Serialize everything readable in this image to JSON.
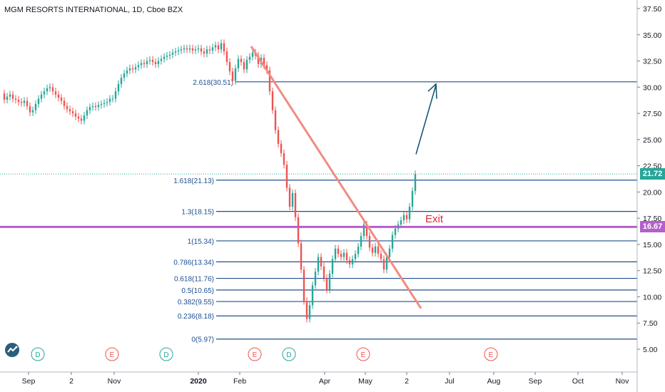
{
  "header": {
    "title": "MGM RESORTS INTERNATIONAL, 1D, Cboe BZX"
  },
  "chart_data": {
    "type": "candlestick",
    "title": "MGM RESORTS INTERNATIONAL, 1D, Cboe BZX",
    "ylim": [
      3.5,
      38.5
    ],
    "y_ticks": [
      "37.50",
      "35.00",
      "32.50",
      "30.00",
      "27.50",
      "25.00",
      "22.50",
      "20.00",
      "17.50",
      "15.00",
      "12.50",
      "10.00",
      "7.50",
      "5.00"
    ],
    "x_ticks": [
      "Sep",
      "2",
      "Nov",
      "2020",
      "Feb",
      "Apr",
      "May",
      "2",
      "Jul",
      "Aug",
      "Sep",
      "Oct",
      "Nov"
    ],
    "last_price": "21.72",
    "exit_price": "16.67",
    "exit_label": "Exit",
    "fib_levels": [
      {
        "label": "2.618(30.51)",
        "value": 30.51
      },
      {
        "label": "1.618(21.13)",
        "value": 21.13
      },
      {
        "label": "1.3(18.15)",
        "value": 18.15
      },
      {
        "label": "1(15.34)",
        "value": 15.34
      },
      {
        "label": "0.786(13.34)",
        "value": 13.34
      },
      {
        "label": "0.618(11.76)",
        "value": 11.76
      },
      {
        "label": "0.5(10.65)",
        "value": 10.65
      },
      {
        "label": "0.382(9.55)",
        "value": 9.55
      },
      {
        "label": "0.236(8.18)",
        "value": 8.18
      },
      {
        "label": "0(5.97)",
        "value": 5.97
      }
    ],
    "price_path": [
      [
        0,
        29.4
      ],
      [
        4,
        28.8
      ],
      [
        8,
        29.1
      ],
      [
        12,
        29.3
      ],
      [
        16,
        28.9
      ],
      [
        20,
        28.8
      ],
      [
        24,
        28.6
      ],
      [
        28,
        28.5
      ],
      [
        32,
        28.7
      ],
      [
        36,
        28.2
      ],
      [
        40,
        27.6
      ],
      [
        44,
        27.8
      ],
      [
        48,
        28.4
      ],
      [
        52,
        28.9
      ],
      [
        56,
        29.3
      ],
      [
        60,
        29.6
      ],
      [
        64,
        29.9
      ],
      [
        68,
        30.0
      ],
      [
        72,
        29.6
      ],
      [
        76,
        29.3
      ],
      [
        80,
        29.0
      ],
      [
        84,
        28.7
      ],
      [
        88,
        28.2
      ],
      [
        92,
        27.9
      ],
      [
        96,
        27.7
      ],
      [
        100,
        27.5
      ],
      [
        104,
        27.2
      ],
      [
        108,
        27.0
      ],
      [
        112,
        26.8
      ],
      [
        116,
        27.3
      ],
      [
        120,
        27.8
      ],
      [
        124,
        28.1
      ],
      [
        128,
        28.2
      ],
      [
        132,
        28.1
      ],
      [
        136,
        28.3
      ],
      [
        140,
        28.4
      ],
      [
        144,
        28.5
      ],
      [
        148,
        28.6
      ],
      [
        152,
        28.9
      ],
      [
        156,
        28.9
      ],
      [
        160,
        29.6
      ],
      [
        164,
        30.3
      ],
      [
        168,
        30.9
      ],
      [
        172,
        31.3
      ],
      [
        176,
        31.6
      ],
      [
        180,
        31.8
      ],
      [
        184,
        31.7
      ],
      [
        188,
        31.9
      ],
      [
        192,
        32.1
      ],
      [
        196,
        32.3
      ],
      [
        200,
        32.2
      ],
      [
        204,
        32.5
      ],
      [
        208,
        32.6
      ],
      [
        212,
        32.4
      ],
      [
        216,
        32.2
      ],
      [
        220,
        32.5
      ],
      [
        224,
        32.7
      ],
      [
        228,
        32.9
      ],
      [
        232,
        33.0
      ],
      [
        236,
        33.1
      ],
      [
        240,
        33.3
      ],
      [
        244,
        33.4
      ],
      [
        248,
        33.5
      ],
      [
        252,
        33.6
      ],
      [
        256,
        33.7
      ],
      [
        260,
        33.6
      ],
      [
        264,
        33.7
      ],
      [
        268,
        33.5
      ],
      [
        272,
        33.6
      ],
      [
        276,
        33.7
      ],
      [
        280,
        33.4
      ],
      [
        284,
        33.2
      ],
      [
        288,
        33.6
      ],
      [
        292,
        33.5
      ],
      [
        296,
        33.8
      ],
      [
        300,
        34.0
      ],
      [
        304,
        33.6
      ],
      [
        308,
        34.2
      ],
      [
        312,
        33.4
      ],
      [
        316,
        32.4
      ],
      [
        320,
        31.5
      ],
      [
        324,
        30.6
      ],
      [
        328,
        31.8
      ],
      [
        332,
        32.7
      ],
      [
        336,
        32.4
      ],
      [
        340,
        31.7
      ],
      [
        344,
        32.6
      ],
      [
        348,
        32.9
      ],
      [
        352,
        33.3
      ],
      [
        356,
        33.0
      ],
      [
        360,
        32.2
      ],
      [
        364,
        32.8
      ],
      [
        368,
        32.1
      ],
      [
        372,
        31.6
      ],
      [
        376,
        29.6
      ],
      [
        380,
        27.8
      ],
      [
        384,
        25.9
      ],
      [
        388,
        24.6
      ],
      [
        392,
        23.7
      ],
      [
        396,
        22.6
      ],
      [
        400,
        20.4
      ],
      [
        404,
        18.6
      ],
      [
        408,
        19.9
      ],
      [
        412,
        17.6
      ],
      [
        416,
        15.1
      ],
      [
        420,
        12.6
      ],
      [
        424,
        9.6
      ],
      [
        428,
        7.9
      ],
      [
        432,
        9.2
      ],
      [
        436,
        11.1
      ],
      [
        440,
        12.4
      ],
      [
        444,
        13.8
      ],
      [
        448,
        12.9
      ],
      [
        452,
        11.8
      ],
      [
        456,
        10.7
      ],
      [
        460,
        12.2
      ],
      [
        464,
        13.6
      ],
      [
        468,
        14.6
      ],
      [
        472,
        14.1
      ],
      [
        476,
        13.8
      ],
      [
        480,
        14.2
      ],
      [
        484,
        13.5
      ],
      [
        488,
        13.1
      ],
      [
        492,
        13.6
      ],
      [
        496,
        14.1
      ],
      [
        500,
        14.8
      ],
      [
        504,
        15.8
      ],
      [
        508,
        16.9
      ],
      [
        512,
        15.8
      ],
      [
        516,
        14.7
      ],
      [
        520,
        14.2
      ],
      [
        524,
        14.8
      ],
      [
        528,
        14.1
      ],
      [
        532,
        13.6
      ],
      [
        536,
        12.6
      ],
      [
        540,
        13.8
      ],
      [
        544,
        14.6
      ],
      [
        548,
        15.9
      ],
      [
        552,
        16.5
      ],
      [
        556,
        16.9
      ],
      [
        560,
        17.3
      ],
      [
        564,
        17.8
      ],
      [
        568,
        17.4
      ],
      [
        572,
        18.6
      ],
      [
        576,
        20.1
      ],
      [
        580,
        21.7
      ]
    ]
  }
}
